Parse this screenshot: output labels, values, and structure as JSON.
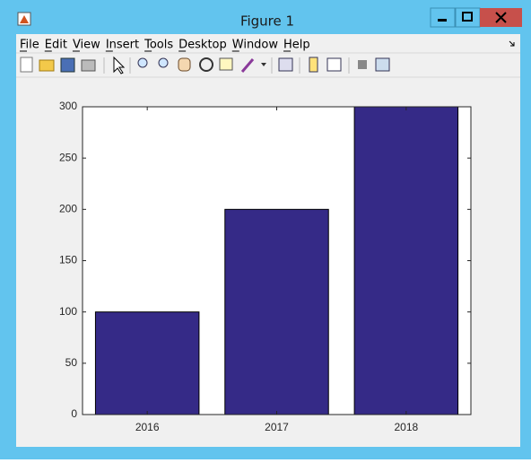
{
  "window": {
    "title": "Figure 1"
  },
  "menu": [
    "File",
    "Edit",
    "View",
    "Insert",
    "Tools",
    "Desktop",
    "Window",
    "Help"
  ],
  "chart_data": {
    "type": "bar",
    "categories": [
      "2016",
      "2017",
      "2018"
    ],
    "values": [
      100,
      200,
      300
    ],
    "color": "#352a87",
    "ylim": [
      0,
      300
    ],
    "yticks": [
      0,
      50,
      100,
      150,
      200,
      250,
      300
    ],
    "grid": false
  }
}
